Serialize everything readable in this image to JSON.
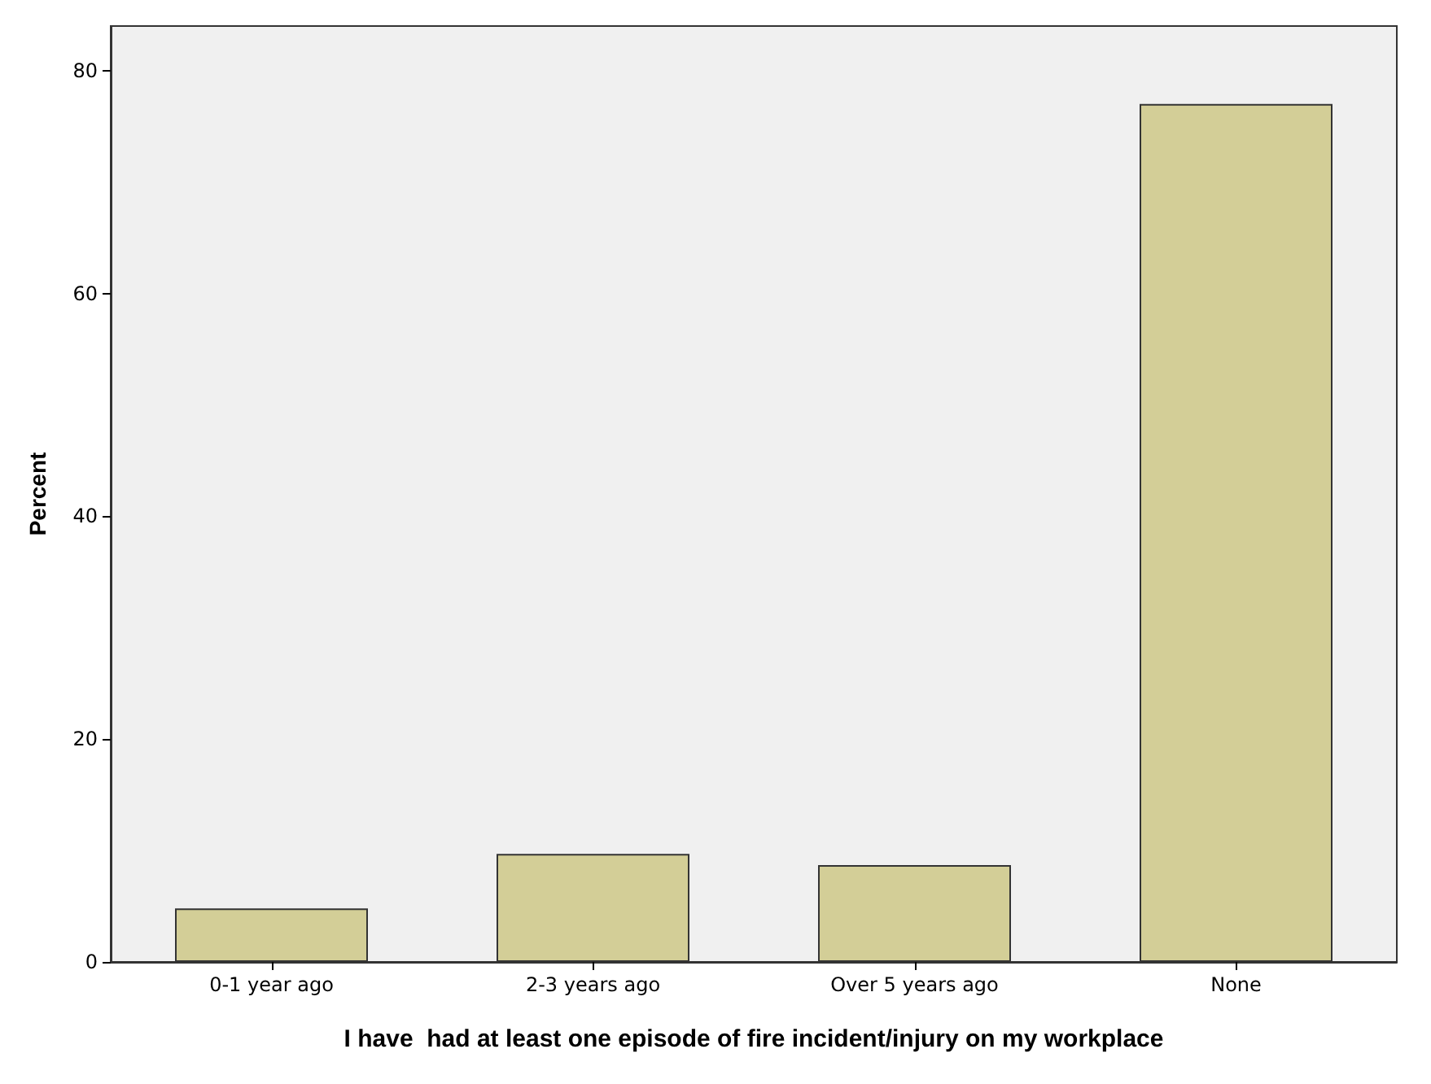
{
  "chart_data": {
    "type": "bar",
    "xlabel": "I have  had at least one episode of fire incident/injury on my workplace",
    "ylabel": "Percent",
    "categories": [
      "0-1 year ago",
      "2-3 years ago",
      "Over 5 years ago",
      "None"
    ],
    "values": [
      4.8,
      9.7,
      8.7,
      77.0
    ],
    "color": "#d3ce97",
    "ylim": [
      0,
      84
    ],
    "yticks": [
      0,
      20,
      40,
      60,
      80
    ],
    "grid": false
  }
}
